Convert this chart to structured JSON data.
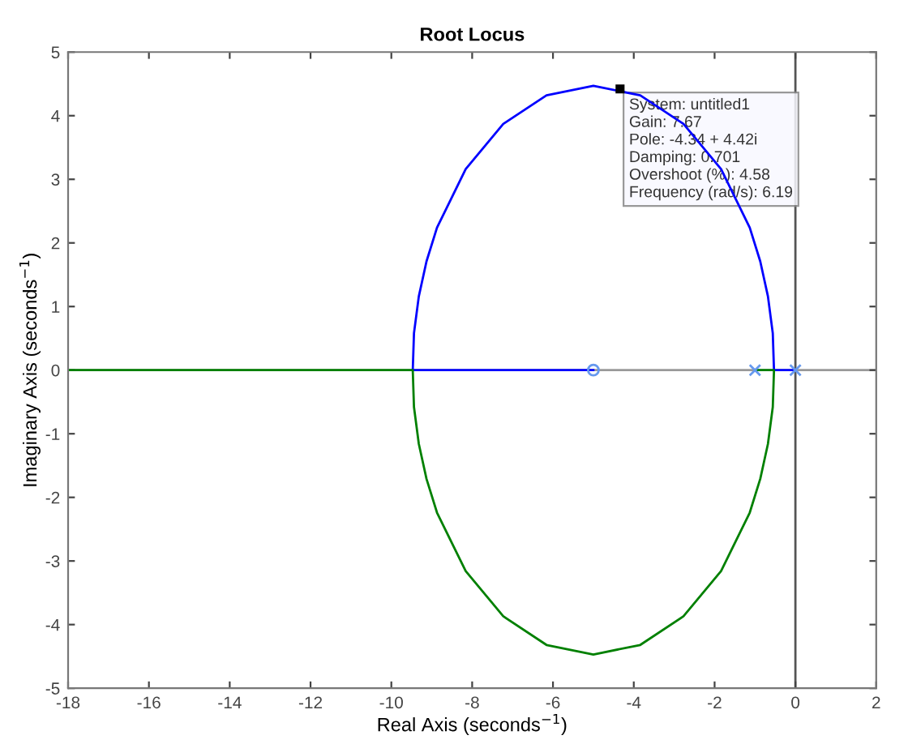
{
  "chart_data": {
    "type": "line",
    "title": "Root Locus",
    "xlabel": "Real Axis (seconds$^{−1}$)",
    "ylabel": "Imaginary Axis (seconds$^{−1}$)",
    "xlim": [
      -18,
      2
    ],
    "ylim": [
      -5,
      5
    ],
    "xticks": [
      -18,
      -16,
      -14,
      -12,
      -10,
      -8,
      -6,
      -4,
      -2,
      0,
      2
    ],
    "yticks": [
      -5,
      -4,
      -3,
      -2,
      -1,
      0,
      1,
      2,
      3,
      4,
      5
    ],
    "grid": false,
    "legend": false,
    "series": [
      {
        "color": "#0000ff",
        "marker": "none",
        "x": [
          0,
          -0.53,
          -0.56,
          -0.68,
          -0.87,
          -1.13,
          -1.84,
          -2.77,
          -3.84,
          -5,
          -6.16,
          -7.23,
          -8.16,
          -8.87,
          -9.13,
          -9.32,
          -9.44,
          -9.47,
          -5
        ],
        "values": [
          0,
          0,
          0.58,
          1.16,
          1.71,
          2.24,
          3.16,
          3.87,
          4.32,
          4.47,
          4.32,
          3.87,
          3.16,
          2.24,
          1.71,
          1.16,
          0.58,
          0,
          0
        ]
      },
      {
        "color": "#008000",
        "marker": "none",
        "x": [
          -1,
          -0.53,
          -0.56,
          -0.68,
          -0.87,
          -1.13,
          -1.84,
          -2.77,
          -3.84,
          -5,
          -6.16,
          -7.23,
          -8.16,
          -8.87,
          -9.13,
          -9.32,
          -9.44,
          -9.47,
          -18
        ],
        "values": [
          0,
          0,
          -0.58,
          -1.16,
          -1.71,
          -2.24,
          -3.16,
          -3.87,
          -4.32,
          -4.47,
          -4.32,
          -3.87,
          -3.16,
          -2.24,
          -1.71,
          -1.16,
          -0.58,
          0,
          0
        ]
      },
      {
        "type": "scatter",
        "color": "#6699ee",
        "marker": "cross",
        "x": [
          0,
          -1
        ],
        "values": [
          0,
          0
        ]
      },
      {
        "type": "scatter",
        "color": "#6699ee",
        "marker": "circle",
        "x": [
          -5
        ],
        "values": [
          0
        ]
      }
    ],
    "ref_lines": [
      {
        "axis": "x",
        "value": 0,
        "color": "#555555"
      },
      {
        "axis": "y",
        "value": 0,
        "color": "#999999"
      }
    ],
    "annotations": [
      {
        "text": "System: untitled1\nGain: 7.67\nPole: -4.34 + 4.42i\nDamping: 0.701\nOvershoot (%): 4.58\nFrequency (rad/s): 6.19",
        "x": -4.34,
        "y": 4.42
      }
    ]
  }
}
